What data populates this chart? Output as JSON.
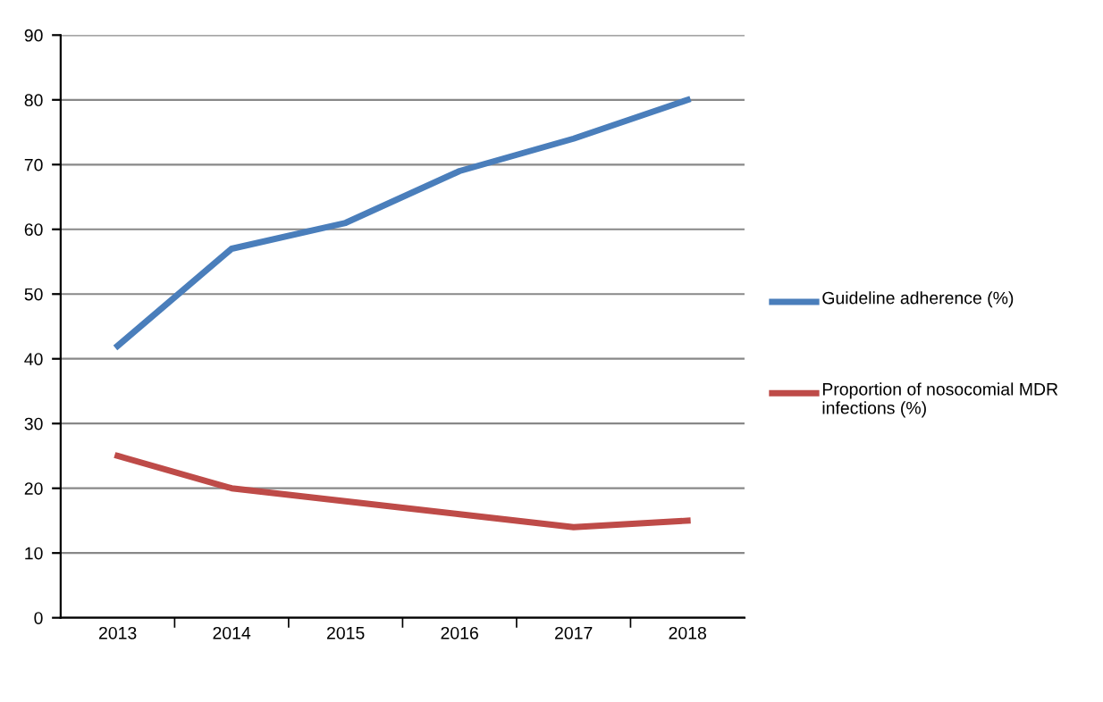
{
  "chart_data": {
    "type": "line",
    "categories": [
      "2013",
      "2014",
      "2015",
      "2016",
      "2017",
      "2018"
    ],
    "series": [
      {
        "name": "Guideline adherence (%)",
        "color": "#4a7ebb",
        "values": [
          42,
          57,
          61,
          69,
          74,
          80
        ]
      },
      {
        "name": "Proportion of nosocomial MDR infections (%)",
        "color": "#be4b48",
        "values": [
          25,
          20,
          18,
          16,
          14,
          15
        ]
      }
    ],
    "ylim": [
      0,
      90
    ],
    "yticks": [
      0,
      10,
      20,
      30,
      40,
      50,
      60,
      70,
      80,
      90
    ],
    "grid": "y",
    "legend": "right",
    "marker": "none",
    "line_style": "solid"
  }
}
